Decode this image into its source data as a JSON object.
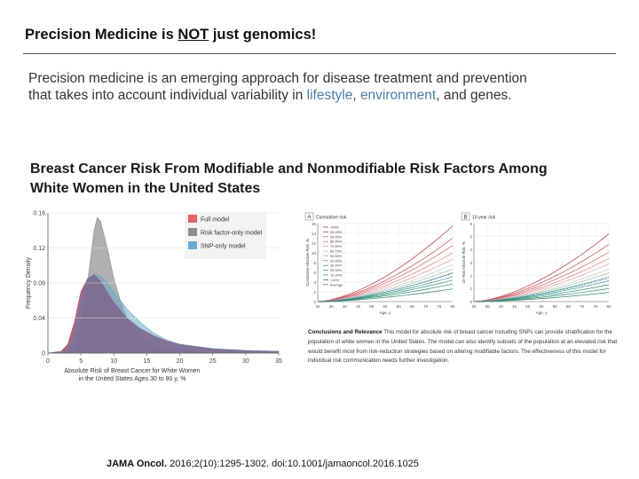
{
  "slide": {
    "title_pre": "Precision Medicine is ",
    "title_emph": "NOT",
    "title_post": " just genomics!",
    "intro_line1": "Precision medicine is an emerging approach for disease treatment and prevention",
    "intro_line2_pre": "that takes into account individual variability in ",
    "intro_hl1": "lifestyle",
    "intro_sep": ", ",
    "intro_hl2": "environment",
    "intro_line2_post": ", and genes.",
    "subheading_line1": "Breast Cancer Risk From Modifiable and Nonmodifiable Risk Factors Among",
    "subheading_line2": "White Women in the United States",
    "conclusions_label": "Conclusions and Relevance",
    "conclusions_text": "This model for absolute risk of breast cancer including SNPs can provide stratification for the population of white women in the United States. The model can also identify subsets of the population at an elevated risk that would benefit most from risk-reduction strategies based on altering modifiable factors. The effectiveness of this model for individual risk communication needs further investigation.",
    "citation_journal": "JAMA Oncol.",
    "citation_rest": " 2016;2(10):1295-1302. doi:10.1001/jamaoncol.2016.1025"
  },
  "colors": {
    "full_model": "#e8606a",
    "risk_factor_only": "#8e8e8e",
    "snp_only": "#6aa8cc",
    "highlight": "#4a7fa8"
  },
  "chart_data": [
    {
      "type": "area",
      "title": "",
      "xlabel": "Absolute Risk of Breast Cancer for White Women in the United States Ages 30 to 80 y, %",
      "ylabel": "Frequency Density",
      "xlim": [
        0,
        35
      ],
      "ylim": [
        0,
        0.16
      ],
      "x_ticks": [
        "0",
        "5",
        "10",
        "15",
        "20",
        "25",
        "30",
        "35"
      ],
      "y_ticks": [
        "0",
        "0.04",
        "0.08",
        "0.12",
        "0.16"
      ],
      "legend_position": "top-right",
      "series": [
        {
          "name": "Full model",
          "color": "#e8606a",
          "x": [
            0,
            2,
            3,
            4,
            5,
            6,
            7,
            8,
            9,
            10,
            12,
            14,
            16,
            18,
            20,
            25,
            30,
            35
          ],
          "y": [
            0,
            0.002,
            0.01,
            0.035,
            0.07,
            0.085,
            0.09,
            0.082,
            0.07,
            0.058,
            0.04,
            0.028,
            0.02,
            0.014,
            0.01,
            0.005,
            0.003,
            0.002
          ]
        },
        {
          "name": "Risk factor-only model",
          "color": "#8e8e8e",
          "x": [
            0,
            3,
            4,
            5,
            6,
            7,
            7.5,
            8,
            9,
            10,
            11,
            12,
            13,
            14,
            16,
            18,
            20,
            25
          ],
          "y": [
            0,
            0,
            0.005,
            0.03,
            0.08,
            0.14,
            0.155,
            0.15,
            0.12,
            0.085,
            0.06,
            0.04,
            0.028,
            0.018,
            0.008,
            0.004,
            0.002,
            0
          ]
        },
        {
          "name": "SNP-only model",
          "color": "#6aa8cc",
          "x": [
            0,
            3,
            4,
            5,
            6,
            7,
            8,
            9,
            10,
            11,
            12,
            14,
            16,
            18,
            20,
            25,
            30,
            35
          ],
          "y": [
            0,
            0.003,
            0.02,
            0.06,
            0.085,
            0.09,
            0.088,
            0.08,
            0.07,
            0.06,
            0.05,
            0.035,
            0.023,
            0.015,
            0.01,
            0.005,
            0.003,
            0.002
          ]
        }
      ]
    },
    {
      "type": "line",
      "panel": "A",
      "title": "Cumulative risk",
      "xlabel": "Age, y",
      "ylabel": "Cumulative Absolute Risk, %",
      "xlim": [
        30,
        80
      ],
      "ylim": [
        0,
        16
      ],
      "x_ticks": [
        "30",
        "35",
        "40",
        "45",
        "50",
        "55",
        "60",
        "65",
        "70",
        "75",
        "80"
      ],
      "y_ticks": [
        "0",
        "2",
        "4",
        "6",
        "8",
        "10",
        "12",
        "14",
        "16"
      ],
      "legend": [
        ">99%",
        "95-99%",
        "90-95%",
        "80-90%",
        "70-80%",
        "60-70%",
        "50-60%",
        "40-50%",
        "30-40%",
        "20-30%",
        "10-20%",
        "<10%",
        "Average"
      ],
      "series_final_values": [
        15.5,
        13,
        11.5,
        10,
        8.7,
        7.6,
        6.7,
        5.9,
        5.1,
        4.4,
        3.6,
        2.6,
        5.8
      ]
    },
    {
      "type": "line",
      "panel": "B",
      "title": "10-year risk",
      "xlabel": "Age, y",
      "ylabel": "10-Year Absolute Risk, %",
      "xlim": [
        30,
        80
      ],
      "ylim": [
        0,
        6
      ],
      "x_ticks": [
        "30",
        "35",
        "40",
        "45",
        "50",
        "55",
        "60",
        "65",
        "70",
        "75",
        "80"
      ],
      "y_ticks": [
        "0",
        "1",
        "2",
        "3",
        "4",
        "5",
        "6"
      ],
      "series_final_values": [
        5.2,
        4.4,
        3.8,
        3.3,
        2.9,
        2.5,
        2.2,
        1.9,
        1.6,
        1.3,
        1.0,
        0.7,
        1.8
      ]
    }
  ]
}
